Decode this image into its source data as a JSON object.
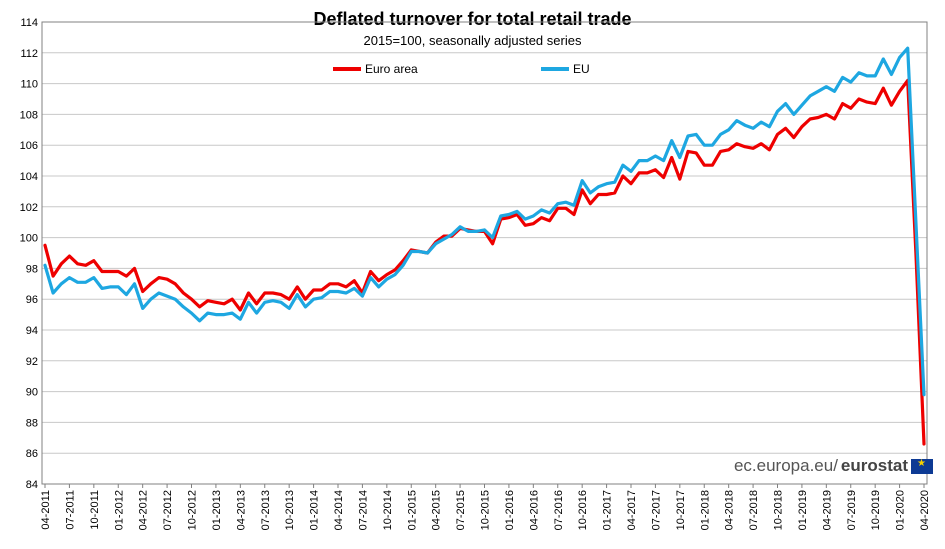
{
  "chart_data": {
    "type": "line",
    "title": "Deflated turnover for total retail trade",
    "subtitle": "2015=100,  seasonally adjusted series",
    "ylim": [
      84,
      114
    ],
    "yticks": [
      84,
      86,
      88,
      90,
      92,
      94,
      96,
      98,
      100,
      102,
      104,
      106,
      108,
      110,
      112,
      114
    ],
    "grid": true,
    "legend_position": "top-center",
    "x_start": "2011-04",
    "x_end": "2020-04",
    "xtick_labels": [
      "04-2011",
      "07-2011",
      "10-2011",
      "01-2012",
      "04-2012",
      "07-2012",
      "10-2012",
      "01-2013",
      "04-2013",
      "07-2013",
      "10-2013",
      "01-2014",
      "04-2014",
      "07-2014",
      "10-2014",
      "01-2015",
      "04-2015",
      "07-2015",
      "10-2015",
      "01-2016",
      "04-2016",
      "07-2016",
      "10-2016",
      "01-2017",
      "04-2017",
      "07-2017",
      "10-2017",
      "01-2018",
      "04-2018",
      "07-2018",
      "10-2018",
      "01-2019",
      "04-2019",
      "07-2019",
      "10-2019",
      "01-2020",
      "04-2020"
    ],
    "series": [
      {
        "name": "Euro area",
        "color": "#ee0000",
        "values": [
          99.5,
          97.5,
          98.3,
          98.8,
          98.3,
          98.2,
          98.5,
          97.8,
          97.8,
          97.8,
          97.5,
          98.0,
          96.5,
          97.0,
          97.4,
          97.3,
          97.0,
          96.4,
          96.0,
          95.5,
          95.9,
          95.8,
          95.7,
          96.0,
          95.3,
          96.4,
          95.7,
          96.4,
          96.4,
          96.3,
          96.0,
          96.8,
          96.0,
          96.6,
          96.6,
          97.0,
          97.0,
          96.8,
          97.2,
          96.4,
          97.8,
          97.2,
          97.6,
          97.9,
          98.5,
          99.2,
          99.1,
          99.0,
          99.7,
          100.1,
          100.1,
          100.6,
          100.5,
          100.4,
          100.4,
          99.6,
          101.2,
          101.3,
          101.5,
          100.8,
          100.9,
          101.3,
          101.1,
          101.9,
          101.9,
          101.5,
          103.1,
          102.2,
          102.8,
          102.8,
          102.9,
          104.0,
          103.5,
          104.2,
          104.2,
          104.4,
          103.9,
          105.2,
          103.8,
          105.6,
          105.5,
          104.7,
          104.7,
          105.6,
          105.7,
          106.1,
          105.9,
          105.8,
          106.1,
          105.7,
          106.7,
          107.1,
          106.5,
          107.2,
          107.7,
          107.8,
          108.0,
          107.7,
          108.7,
          108.4,
          109.0,
          108.8,
          108.7,
          109.7,
          108.6,
          109.5,
          110.2,
          99.0,
          86.6
        ]
      },
      {
        "name": "EU",
        "color": "#1ea7e1",
        "values": [
          98.2,
          96.4,
          97.0,
          97.4,
          97.1,
          97.1,
          97.4,
          96.7,
          96.8,
          96.8,
          96.3,
          97.0,
          95.4,
          96.0,
          96.4,
          96.2,
          96.0,
          95.5,
          95.1,
          94.6,
          95.1,
          95.0,
          95.0,
          95.1,
          94.7,
          95.8,
          95.1,
          95.8,
          95.9,
          95.8,
          95.4,
          96.3,
          95.5,
          96.0,
          96.1,
          96.5,
          96.5,
          96.4,
          96.7,
          96.2,
          97.4,
          96.8,
          97.3,
          97.6,
          98.2,
          99.1,
          99.1,
          99.0,
          99.6,
          99.9,
          100.2,
          100.7,
          100.4,
          100.4,
          100.5,
          100.0,
          101.4,
          101.5,
          101.7,
          101.2,
          101.4,
          101.8,
          101.6,
          102.2,
          102.3,
          102.1,
          103.7,
          102.9,
          103.3,
          103.5,
          103.6,
          104.7,
          104.3,
          105.0,
          105.0,
          105.3,
          105.0,
          106.3,
          105.2,
          106.6,
          106.7,
          106.0,
          106.0,
          106.7,
          107.0,
          107.6,
          107.3,
          107.1,
          107.5,
          107.2,
          108.2,
          108.7,
          108.0,
          108.6,
          109.2,
          109.5,
          109.8,
          109.5,
          110.4,
          110.1,
          110.7,
          110.5,
          110.5,
          111.6,
          110.6,
          111.7,
          112.3,
          101.0,
          89.8
        ]
      }
    ]
  },
  "source": {
    "domain": "ec.europa.eu/",
    "brand": "eurostat"
  }
}
